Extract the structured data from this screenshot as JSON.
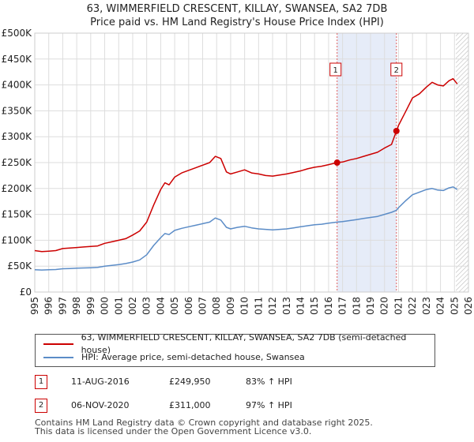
{
  "header": {
    "title": "63, WIMMERFIELD CRESCENT, KILLAY, SWANSEA, SA2 7DB",
    "subtitle": "Price paid vs. HM Land Registry's House Price Index (HPI)"
  },
  "chart_data": {
    "type": "line",
    "title": "63, WIMMERFIELD CRESCENT, KILLAY, SWANSEA, SA2 7DB",
    "subtitle": "Price paid vs. HM Land Registry's House Price Index (HPI)",
    "xlabel": "",
    "ylabel": "",
    "xlim": [
      1995,
      2026
    ],
    "ylim": [
      0,
      500000
    ],
    "x_ticks": [
      "1995",
      "1996",
      "1997",
      "1998",
      "1999",
      "2000",
      "2001",
      "2002",
      "2003",
      "2004",
      "2005",
      "2006",
      "2007",
      "2008",
      "2009",
      "2010",
      "2011",
      "2012",
      "2013",
      "2014",
      "2015",
      "2016",
      "2017",
      "2018",
      "2019",
      "2020",
      "2021",
      "2022",
      "2023",
      "2024",
      "2025",
      "2026"
    ],
    "y_ticks": [
      {
        "value": 0,
        "label": "£0"
      },
      {
        "value": 50000,
        "label": "£50K"
      },
      {
        "value": 100000,
        "label": "£100K"
      },
      {
        "value": 150000,
        "label": "£150K"
      },
      {
        "value": 200000,
        "label": "£200K"
      },
      {
        "value": 250000,
        "label": "£250K"
      },
      {
        "value": 300000,
        "label": "£300K"
      },
      {
        "value": 350000,
        "label": "£350K"
      },
      {
        "value": 400000,
        "label": "£400K"
      },
      {
        "value": 450000,
        "label": "£450K"
      },
      {
        "value": 500000,
        "label": "£500K"
      }
    ],
    "grid": true,
    "highlight_span": [
      2016.61,
      2020.85
    ],
    "forecast_start": 2025.1,
    "series": [
      {
        "name": "63, WIMMERFIELD CRESCENT, KILLAY, SWANSEA, SA2 7DB (semi-detached house)",
        "color": "#cc0000",
        "x": [
          1995,
          1995.5,
          1996,
          1996.5,
          1997,
          1997.5,
          1998,
          1998.5,
          1999,
          1999.5,
          2000,
          2000.5,
          2001,
          2001.5,
          2002,
          2002.5,
          2003,
          2003.5,
          2004,
          2004.3,
          2004.6,
          2005,
          2005.5,
          2006,
          2006.5,
          2007,
          2007.5,
          2007.9,
          2008.3,
          2008.7,
          2009,
          2009.5,
          2010,
          2010.5,
          2011,
          2011.5,
          2012,
          2012.5,
          2013,
          2013.5,
          2014,
          2014.5,
          2015,
          2015.5,
          2016,
          2016.61,
          2017,
          2017.5,
          2018,
          2018.5,
          2019,
          2019.5,
          2020,
          2020.5,
          2020.85,
          2021,
          2021.5,
          2022,
          2022.5,
          2023,
          2023.4,
          2023.8,
          2024.2,
          2024.6,
          2024.9,
          2025.2
        ],
        "values": [
          80000,
          78000,
          79000,
          80000,
          84000,
          85000,
          86000,
          87000,
          88000,
          89000,
          94000,
          97000,
          100000,
          103000,
          110000,
          118000,
          135000,
          168000,
          198000,
          211000,
          207000,
          222000,
          230000,
          235000,
          240000,
          245000,
          250000,
          262000,
          258000,
          232000,
          228000,
          232000,
          236000,
          230000,
          228000,
          225000,
          224000,
          226000,
          228000,
          231000,
          234000,
          238000,
          241000,
          243000,
          246000,
          249950,
          251000,
          255000,
          258000,
          262000,
          266000,
          270000,
          278000,
          285000,
          311000,
          322000,
          348000,
          375000,
          383000,
          396000,
          405000,
          400000,
          398000,
          408000,
          412000,
          402000
        ]
      },
      {
        "name": "HPI: Average price, semi-detached house, Swansea",
        "color": "#5b8cc7",
        "x": [
          1995,
          1995.5,
          1996,
          1996.5,
          1997,
          1997.5,
          1998,
          1998.5,
          1999,
          1999.5,
          2000,
          2000.5,
          2001,
          2001.5,
          2002,
          2002.5,
          2003,
          2003.5,
          2004,
          2004.3,
          2004.6,
          2005,
          2005.5,
          2006,
          2006.5,
          2007,
          2007.5,
          2007.9,
          2008.3,
          2008.7,
          2009,
          2009.5,
          2010,
          2010.5,
          2011,
          2011.5,
          2012,
          2012.5,
          2013,
          2013.5,
          2014,
          2014.5,
          2015,
          2015.5,
          2016,
          2016.61,
          2017,
          2017.5,
          2018,
          2018.5,
          2019,
          2019.5,
          2020,
          2020.5,
          2020.85,
          2021,
          2021.5,
          2022,
          2022.5,
          2023,
          2023.4,
          2023.8,
          2024.2,
          2024.6,
          2024.9,
          2025.2
        ],
        "values": [
          43000,
          42500,
          43000,
          43500,
          45000,
          45500,
          46000,
          46500,
          47000,
          47500,
          50000,
          51500,
          53000,
          55000,
          58000,
          62000,
          72000,
          90000,
          105000,
          113000,
          111000,
          119000,
          123000,
          126000,
          129000,
          132000,
          135000,
          143000,
          139000,
          125000,
          122000,
          125000,
          127000,
          124000,
          122000,
          121000,
          120000,
          121000,
          122000,
          124000,
          126000,
          128000,
          130000,
          131000,
          133000,
          135000,
          136000,
          138000,
          140000,
          142000,
          144000,
          146000,
          150000,
          154000,
          158000,
          163000,
          176000,
          188000,
          193000,
          198000,
          200000,
          197000,
          196000,
          201000,
          203000,
          198000
        ]
      }
    ],
    "annotations": [
      {
        "label": "1",
        "x": 2016.61,
        "value": 249950
      },
      {
        "label": "2",
        "x": 2020.85,
        "value": 311000
      }
    ]
  },
  "legend": {
    "items": [
      {
        "label": "63, WIMMERFIELD CRESCENT, KILLAY, SWANSEA, SA2 7DB (semi-detached house)",
        "color": "#cc0000"
      },
      {
        "label": "HPI: Average price, semi-detached house, Swansea",
        "color": "#5b8cc7"
      }
    ]
  },
  "transactions": [
    {
      "num": "1",
      "date": "11-AUG-2016",
      "price": "£249,950",
      "hpi": "83% ↑ HPI"
    },
    {
      "num": "2",
      "date": "06-NOV-2020",
      "price": "£311,000",
      "hpi": "97% ↑ HPI"
    }
  ],
  "footer": {
    "line1": "Contains HM Land Registry data © Crown copyright and database right 2025.",
    "line2": "This data is licensed under the Open Government Licence v3.0."
  }
}
